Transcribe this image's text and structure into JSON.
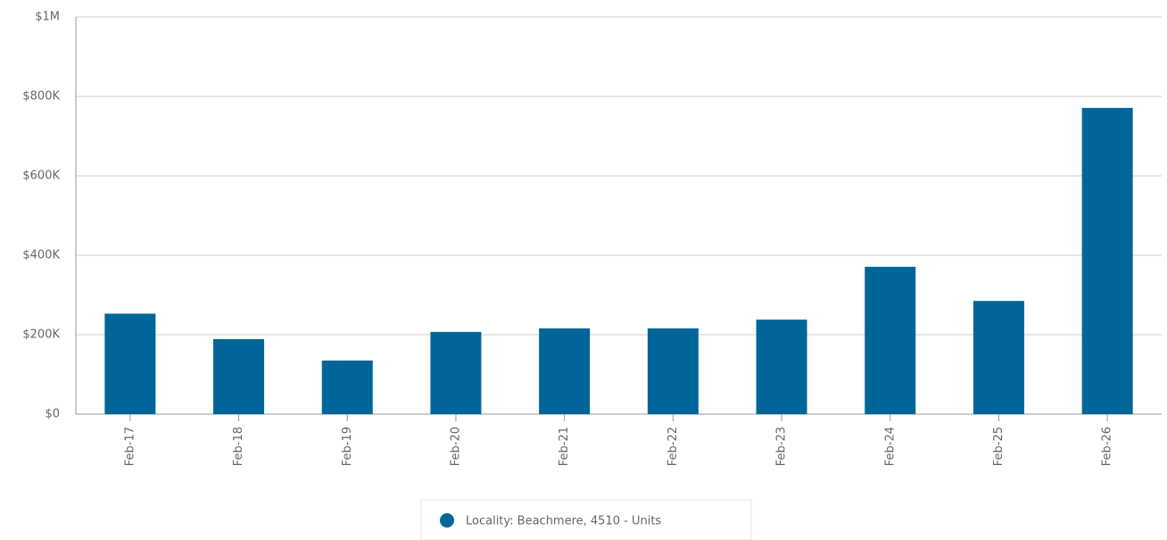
{
  "chart_data": {
    "type": "bar",
    "categories": [
      "Feb-17",
      "Feb-18",
      "Feb-19",
      "Feb-20",
      "Feb-21",
      "Feb-22",
      "Feb-23",
      "Feb-24",
      "Feb-25",
      "Feb-26"
    ],
    "series": [
      {
        "name": "Locality: Beachmere, 4510 - Units",
        "color": "#006699",
        "values": [
          253000,
          189000,
          135000,
          207000,
          216000,
          216000,
          238000,
          371000,
          285000,
          771000
        ]
      }
    ],
    "ylim": [
      0,
      1000000
    ],
    "yticks": [
      {
        "value": 0,
        "label": "$0"
      },
      {
        "value": 200000,
        "label": "$200K"
      },
      {
        "value": 400000,
        "label": "$400K"
      },
      {
        "value": 600000,
        "label": "$600K"
      },
      {
        "value": 800000,
        "label": "$800K"
      },
      {
        "value": 1000000,
        "label": "$1M"
      }
    ],
    "grid": true,
    "legend": "bottom"
  }
}
